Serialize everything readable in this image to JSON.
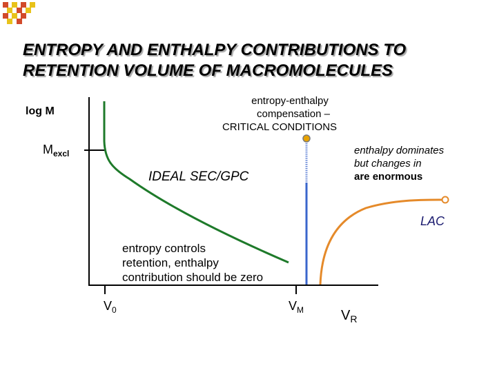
{
  "title": {
    "line1": "ENTROPY AND ENTHALPY CONTRIBUTIONS TO",
    "line2": "RETENTION VOLUME OF MACROMOLECULES"
  },
  "axis": {
    "y_label": "log M",
    "mexcl_main": "M",
    "mexcl_sub": "excl",
    "v0_main": "V",
    "v0_sub": "0",
    "vm_main": "V",
    "vm_sub": "M",
    "vr_main": "V",
    "vr_sub": "R"
  },
  "annotations": {
    "critical_line1": "entropy-enthalpy",
    "critical_line2": "compensation –",
    "critical_line3": "CRITICAL CONDITIONS",
    "enthalpy_line1": "enthalpy dominates",
    "enthalpy_line2": "but changes in",
    "enthalpy_line3": "are enormous",
    "ideal_sec": "IDEAL SEC/GPC",
    "lac": "LAC",
    "entropy_line1": "entropy controls",
    "entropy_line2": "retention, enthalpy",
    "entropy_line3": "contribution should be zero"
  },
  "colors": {
    "sec_curve": "#1e7a2a",
    "critical_line": "#3a66cc",
    "lac_curve": "#e58a2a",
    "critical_marker": "#e8a300",
    "lac_marker": "#e58a2a",
    "logo_red": "#d24a2a",
    "logo_yellow": "#e8c21a"
  }
}
